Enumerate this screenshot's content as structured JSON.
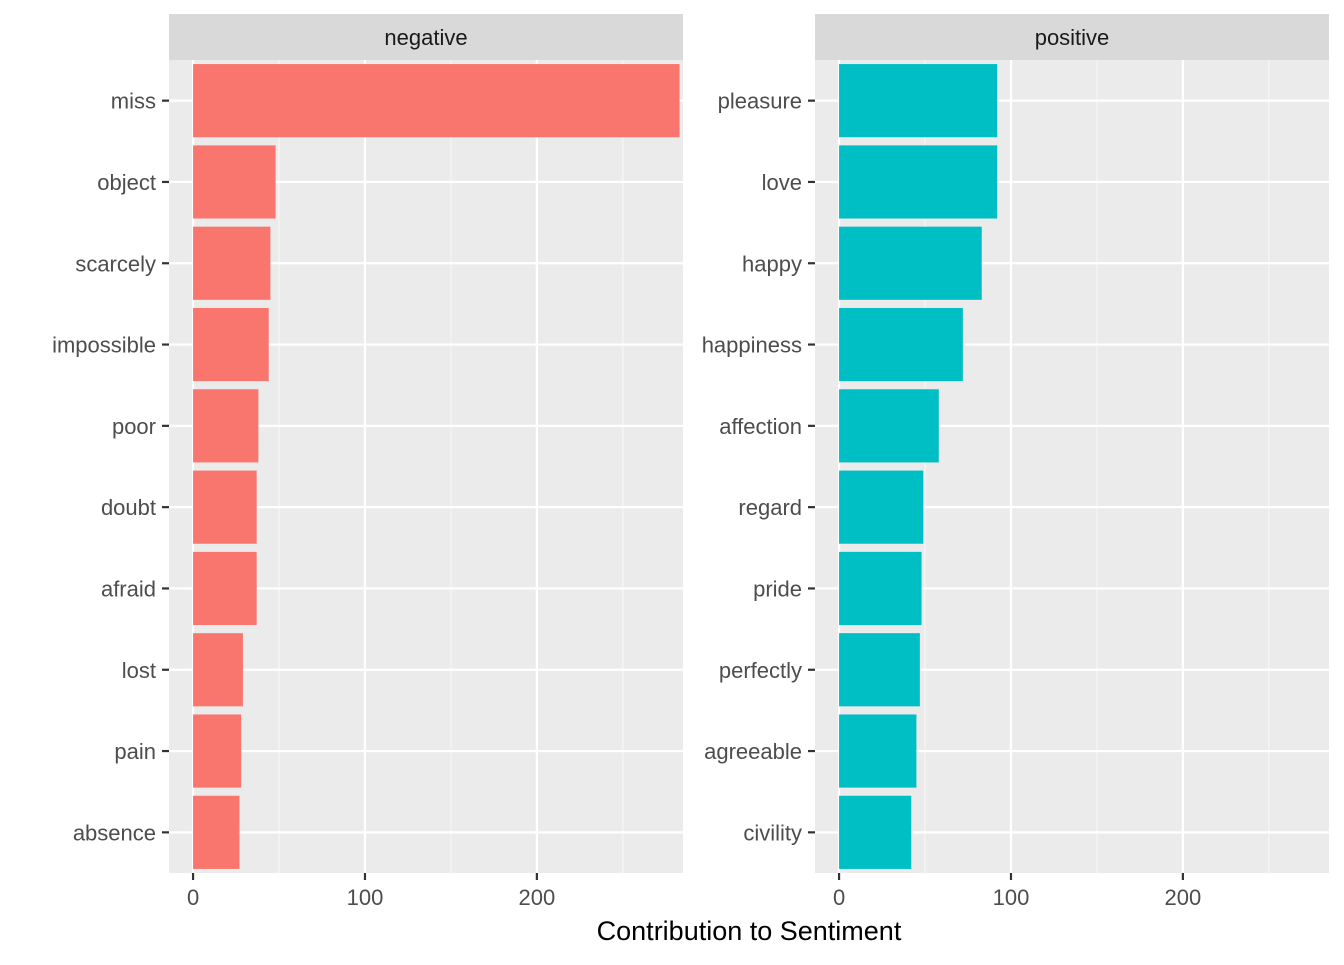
{
  "chart_data": {
    "type": "bar",
    "orientation": "horizontal",
    "xlabel": "Contribution to Sentiment",
    "ylabel": "",
    "xlim": [
      -14,
      285
    ],
    "xticks": [
      0,
      100,
      200
    ],
    "grid": true,
    "legend": "none",
    "panels": [
      {
        "title": "negative",
        "color": "#F8766D",
        "categories": [
          "miss",
          "object",
          "scarcely",
          "impossible",
          "poor",
          "doubt",
          "afraid",
          "lost",
          "pain",
          "absence"
        ],
        "values": [
          283,
          48,
          45,
          44,
          38,
          37,
          37,
          29,
          28,
          27
        ]
      },
      {
        "title": "positive",
        "color": "#00BFC4",
        "categories": [
          "pleasure",
          "love",
          "happy",
          "happiness",
          "affection",
          "regard",
          "pride",
          "perfectly",
          "agreeable",
          "civility"
        ],
        "values": [
          92,
          92,
          83,
          72,
          58,
          49,
          48,
          47,
          45,
          42
        ]
      }
    ]
  }
}
